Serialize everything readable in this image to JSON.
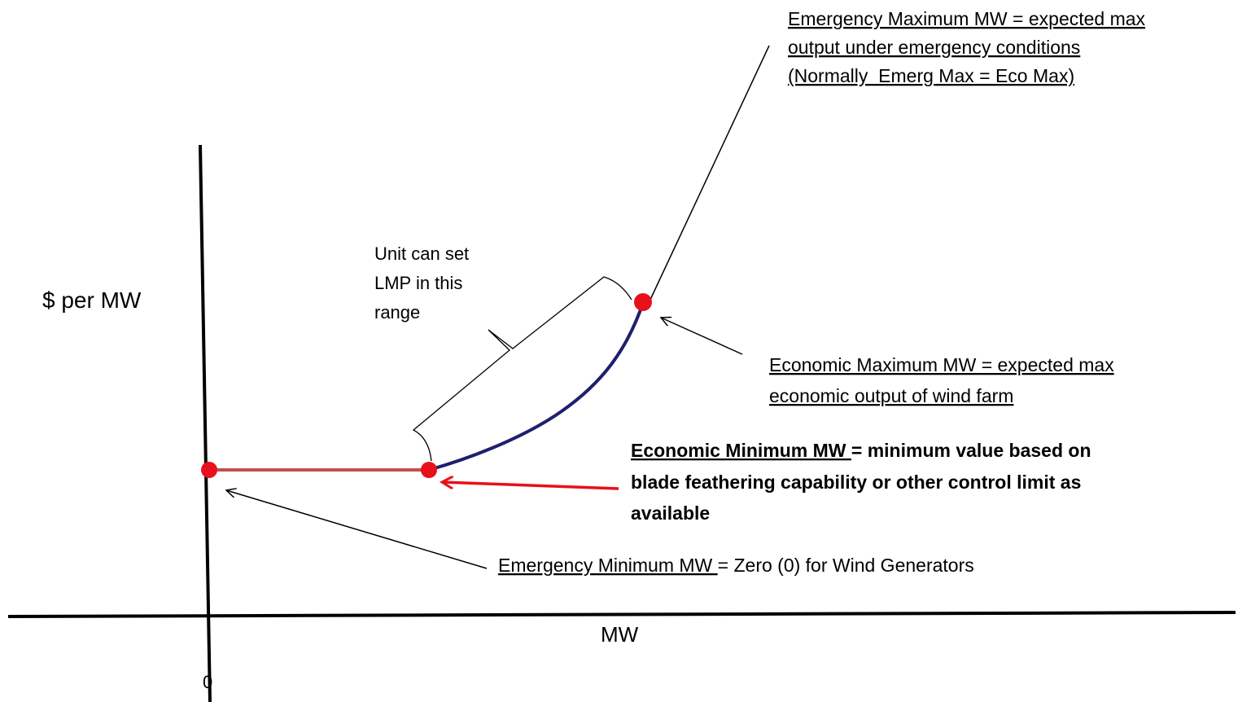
{
  "axes": {
    "y_label": "$ per MW",
    "x_label": "MW",
    "origin_label": "0"
  },
  "range_note": {
    "lines": [
      "Unit can set",
      "LMP in this",
      "range"
    ]
  },
  "annotations": {
    "emergency_max": {
      "lines": [
        "Emergency Maximum MW = expected max",
        "output under emergency conditions",
        "(Normally  Emerg Max = Eco Max)"
      ]
    },
    "economic_max": {
      "lines": [
        "Economic Maximum MW = expected max",
        "economic output of wind farm"
      ]
    },
    "economic_min": {
      "term": "Economic Minimum MW ",
      "rest": "= minimum value based on",
      "lines": [
        "blade feathering capability or other control limit as",
        "available"
      ]
    },
    "emergency_min": {
      "term": "Emergency Minimum MW ",
      "rest": "= Zero (0) for Wind Generators"
    }
  }
}
